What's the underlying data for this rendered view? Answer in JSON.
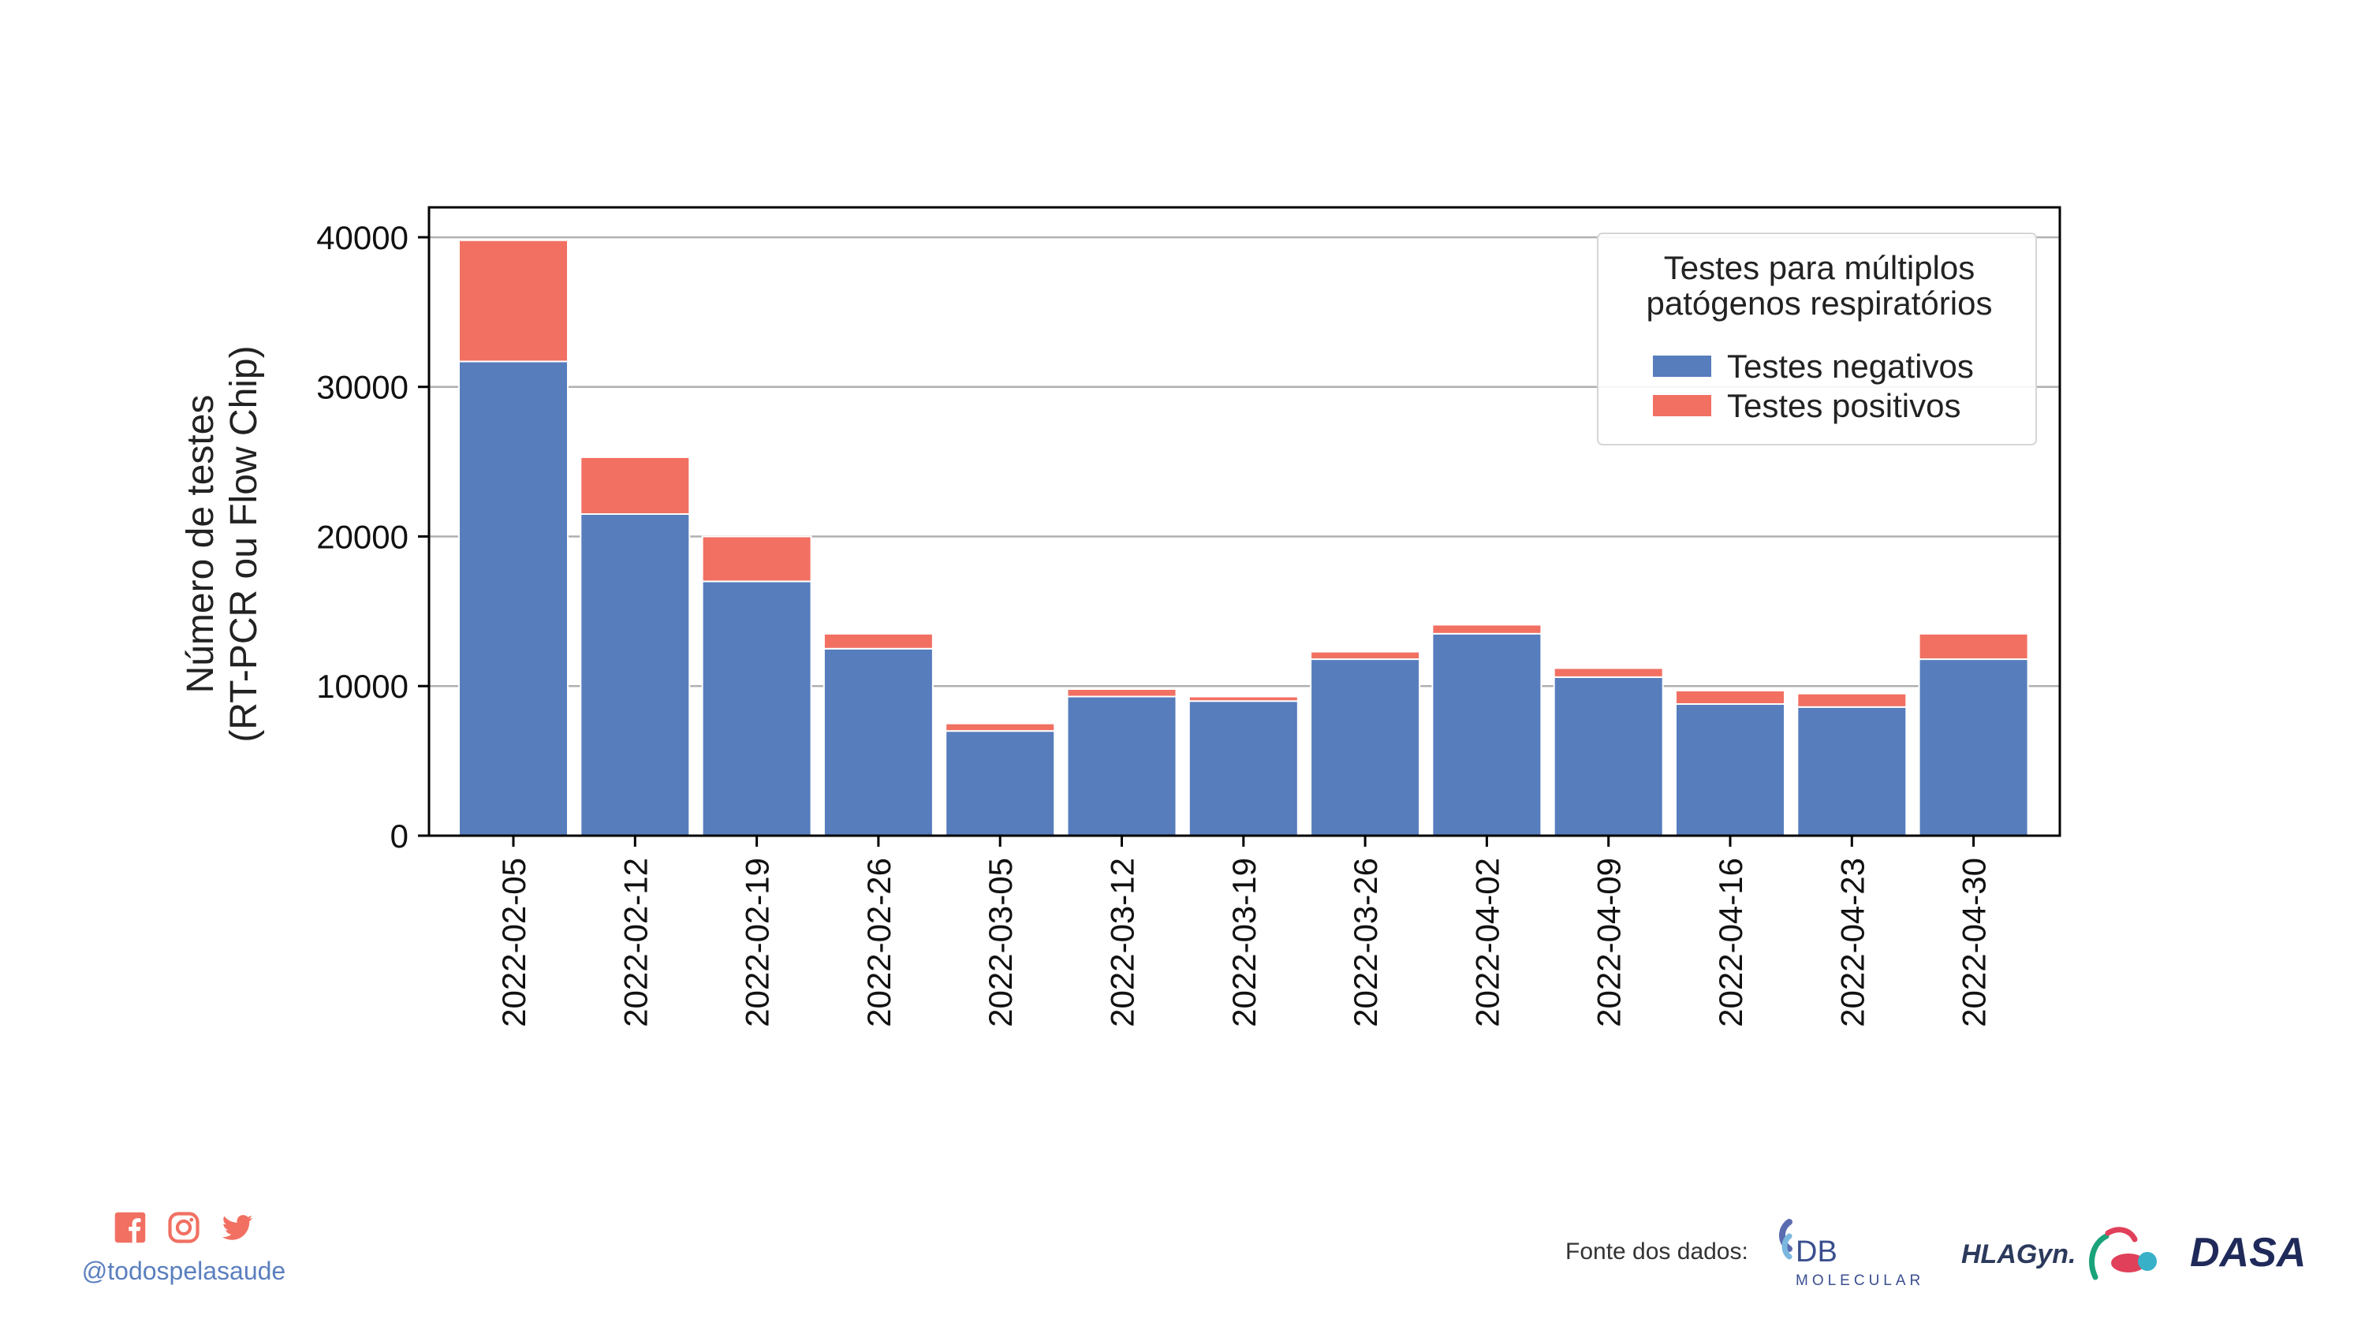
{
  "colors": {
    "negative": "#577dbd",
    "positive": "#f17062",
    "grid": "#b0b0b0",
    "axis": "#000000"
  },
  "chart_data": {
    "type": "bar",
    "stacked": true,
    "categories": [
      "2022-02-05",
      "2022-02-12",
      "2022-02-19",
      "2022-02-26",
      "2022-03-05",
      "2022-03-12",
      "2022-03-19",
      "2022-03-26",
      "2022-04-02",
      "2022-04-09",
      "2022-04-16",
      "2022-04-23",
      "2022-04-30"
    ],
    "series": [
      {
        "name": "Testes negativos",
        "color": "#577dbd",
        "values": [
          31700,
          21500,
          17000,
          12500,
          7000,
          9300,
          9000,
          11800,
          13500,
          10600,
          8800,
          8600,
          11800
        ]
      },
      {
        "name": "Testes positivos",
        "color": "#f17062",
        "values": [
          8100,
          3800,
          3000,
          1000,
          500,
          500,
          300,
          500,
          600,
          600,
          900,
          900,
          1700
        ]
      }
    ],
    "ylabel": [
      "Número de testes",
      "(RT-PCR ou Flow Chip)"
    ],
    "xlabel": "",
    "ylim": [
      0,
      42000
    ],
    "yticks": [
      0,
      10000,
      20000,
      30000,
      40000
    ],
    "ytick_labels": [
      "0",
      "10000",
      "20000",
      "30000",
      "40000"
    ],
    "grid": "horizontal",
    "legend": {
      "title_lines": [
        "Testes para múltiplos",
        "patógenos respiratórios"
      ],
      "position": "top-right"
    }
  },
  "footer": {
    "handle": "@todospelasaude",
    "social_icons": [
      "facebook-icon",
      "instagram-icon",
      "twitter-icon"
    ],
    "source_label": "Fonte dos dados:",
    "logos": [
      {
        "name": "DB",
        "sub": "MOLECULAR"
      },
      {
        "name": "HLAGyn."
      },
      {
        "name": "DASA"
      }
    ]
  }
}
